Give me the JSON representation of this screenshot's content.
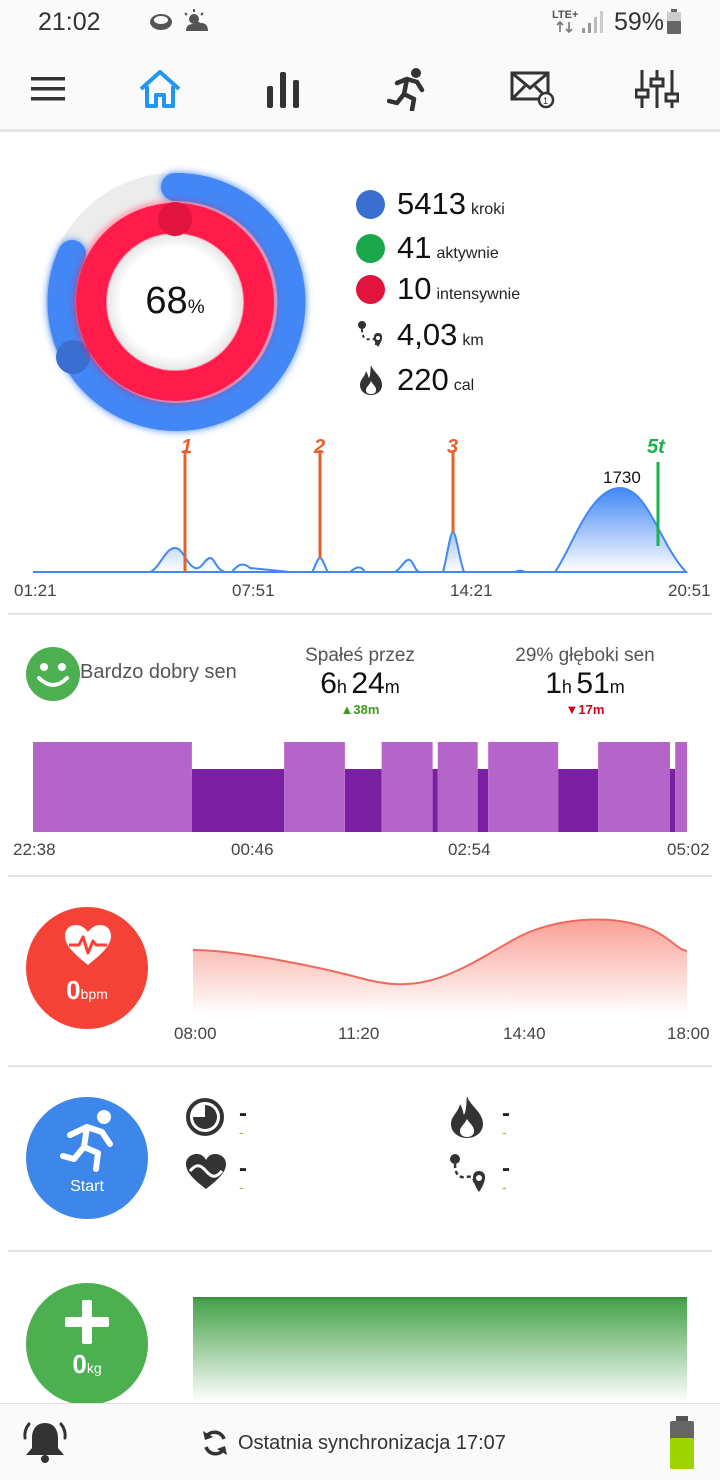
{
  "status_bar": {
    "time": "21:02",
    "network": "LTE+",
    "battery_percent": "59%"
  },
  "nav": {
    "items": [
      "menu",
      "home",
      "statistics",
      "workout",
      "notifications",
      "settings"
    ],
    "active": "home",
    "active_color": "#2196f3"
  },
  "activity": {
    "goal_percent": "68",
    "percent_sign": "%",
    "steps": {
      "value": "5413",
      "unit": "kroki",
      "color": "#3a6fd0"
    },
    "active_minutes": {
      "value": "41",
      "unit": "aktywnie",
      "color": "#1aa64a"
    },
    "intense_minutes": {
      "value": "10",
      "unit": "intensywnie",
      "color": "#e0143c"
    },
    "distance": {
      "value": "4,03",
      "unit": "km"
    },
    "calories": {
      "value": "220",
      "unit": "cal"
    }
  },
  "steps_chart": {
    "x_labels": [
      "01:21",
      "07:51",
      "14:21",
      "20:51"
    ],
    "peak_label": "1730",
    "markers": [
      {
        "label": "1",
        "color": "#e8602c"
      },
      {
        "label": "2",
        "color": "#e8602c"
      },
      {
        "label": "3",
        "color": "#e8602c"
      },
      {
        "label": "5t",
        "color": "#1ab54a"
      }
    ]
  },
  "sleep": {
    "quality_label": "Bardzo dobry sen",
    "total_header": "Spałeś przez",
    "total_hours": "6",
    "total_h_unit": "h",
    "total_minutes": "24",
    "total_m_unit": "m",
    "total_delta": "▲38m",
    "deep_header": "29% głęboki sen",
    "deep_hours": "1",
    "deep_h_unit": "h",
    "deep_minutes": "51",
    "deep_m_unit": "m",
    "deep_delta": "▼17m",
    "x_labels": [
      "22:38",
      "00:46",
      "02:54",
      "05:02"
    ],
    "light_color": "#b565c9",
    "deep_color": "#7b1fa2",
    "phases": [
      {
        "type": "light",
        "start": 0.0,
        "end": 0.243
      },
      {
        "type": "deep",
        "start": 0.243,
        "end": 0.384
      },
      {
        "type": "light",
        "start": 0.384,
        "end": 0.477
      },
      {
        "type": "deep",
        "start": 0.477,
        "end": 0.533
      },
      {
        "type": "light",
        "start": 0.533,
        "end": 0.611
      },
      {
        "type": "deep",
        "start": 0.611,
        "end": 0.619
      },
      {
        "type": "light",
        "start": 0.619,
        "end": 0.68
      },
      {
        "type": "deep",
        "start": 0.68,
        "end": 0.696
      },
      {
        "type": "light",
        "start": 0.696,
        "end": 0.803
      },
      {
        "type": "deep",
        "start": 0.803,
        "end": 0.864
      },
      {
        "type": "light",
        "start": 0.864,
        "end": 0.974
      },
      {
        "type": "deep",
        "start": 0.974,
        "end": 0.982
      },
      {
        "type": "light",
        "start": 0.982,
        "end": 1.0
      }
    ]
  },
  "heart_rate": {
    "value": "0",
    "unit": "bpm",
    "x_labels": [
      "08:00",
      "11:20",
      "14:40",
      "18:00"
    ],
    "color": "#f44336"
  },
  "workout": {
    "start_label": "Start",
    "duration": {
      "value": "-",
      "sub": "-"
    },
    "calories": {
      "value": "-",
      "sub": "-"
    },
    "heart": {
      "value": "-",
      "sub": "-"
    },
    "distance": {
      "value": "-",
      "sub": "-"
    },
    "color": "#3d86ea"
  },
  "weight": {
    "value": "0",
    "unit": "kg",
    "color": "#4caf50"
  },
  "bottom_bar": {
    "sync_text": "Ostatnia synchronizacja 17:07"
  }
}
